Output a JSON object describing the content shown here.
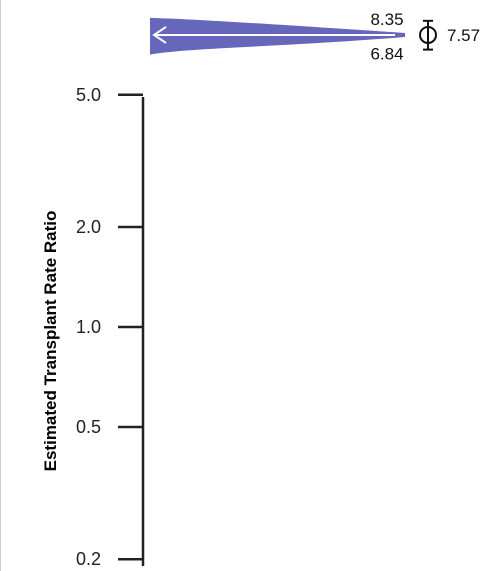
{
  "chart_data": {
    "type": "scatter",
    "ylabel": "Estimated Transplant Rate Ratio",
    "y_scale": "log",
    "ylim": [
      0.2,
      5.0
    ],
    "y_ticks": [
      {
        "value": 5.0,
        "label": "5.0"
      },
      {
        "value": 2.0,
        "label": "2.0"
      },
      {
        "value": 1.0,
        "label": "1.0"
      },
      {
        "value": 0.5,
        "label": "0.5"
      },
      {
        "value": 0.2,
        "label": "0.2"
      }
    ],
    "points": [
      {
        "estimate": 7.57,
        "lower": 6.84,
        "upper": 8.35,
        "estimate_label": "7.57",
        "lower_label": "6.84",
        "upper_label": "8.35"
      }
    ],
    "colors": {
      "distribution": "#6666bb",
      "arrow": "#ffffff",
      "axis": "#222222",
      "marker": "#111111"
    }
  }
}
